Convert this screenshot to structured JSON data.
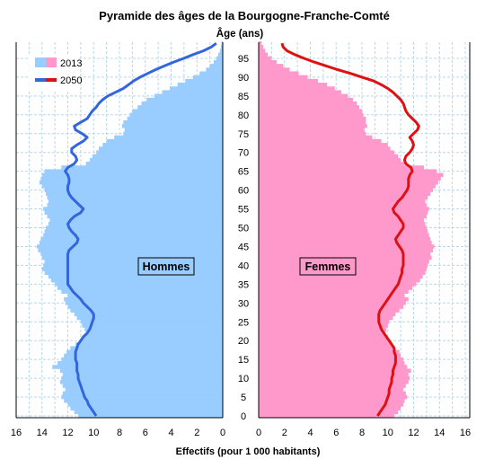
{
  "chart_data": {
    "type": "population_pyramid",
    "title": "Pyramide des âges de la Bourgogne-Franche-Comté",
    "age_axis_label": "Âge (ans)",
    "xlabel": "Effectifs (pour 1 000 habitants)",
    "x_ticks_left": [
      "16",
      "14",
      "12",
      "10",
      "8",
      "6",
      "4",
      "2",
      "0"
    ],
    "x_ticks_right": [
      "0",
      "2",
      "4",
      "6",
      "8",
      "10",
      "12",
      "14",
      "16"
    ],
    "age_ticks": [
      "0",
      "5",
      "10",
      "15",
      "20",
      "25",
      "30",
      "35",
      "40",
      "45",
      "50",
      "55",
      "60",
      "65",
      "70",
      "75",
      "80",
      "85",
      "90",
      "95"
    ],
    "xlim": [
      0,
      16
    ],
    "age_range": [
      0,
      99
    ],
    "grid": true,
    "legend_position": "top-left",
    "sides": {
      "left": "Hommes",
      "right": "Femmes"
    },
    "series": [
      {
        "name": "2013",
        "style": "bars",
        "colors": {
          "Hommes": "#99ccff",
          "Femmes": "#ff99cc"
        }
      },
      {
        "name": "2050",
        "style": "line",
        "colors": {
          "Hommes": "#3366dd",
          "Femmes": "#dd1111"
        }
      }
    ],
    "ages": [
      0,
      1,
      2,
      3,
      4,
      5,
      6,
      7,
      8,
      9,
      10,
      11,
      12,
      13,
      14,
      15,
      16,
      17,
      18,
      19,
      20,
      21,
      22,
      23,
      24,
      25,
      26,
      27,
      28,
      29,
      30,
      31,
      32,
      33,
      34,
      35,
      36,
      37,
      38,
      39,
      40,
      41,
      42,
      43,
      44,
      45,
      46,
      47,
      48,
      49,
      50,
      51,
      52,
      53,
      54,
      55,
      56,
      57,
      58,
      59,
      60,
      61,
      62,
      63,
      64,
      65,
      66,
      67,
      68,
      69,
      70,
      71,
      72,
      73,
      74,
      75,
      76,
      77,
      78,
      79,
      80,
      81,
      82,
      83,
      84,
      85,
      86,
      87,
      88,
      89,
      90,
      91,
      92,
      93,
      94,
      95,
      96,
      97,
      98,
      99
    ],
    "bars_2013": {
      "Hommes": [
        11.2,
        11.5,
        11.8,
        12.0,
        12.3,
        12.5,
        12.4,
        12.2,
        12.4,
        12.6,
        12.5,
        12.4,
        12.6,
        13.2,
        12.8,
        12.5,
        12.3,
        12.1,
        11.8,
        11.4,
        11.0,
        10.8,
        10.6,
        10.7,
        10.9,
        11.0,
        11.3,
        11.5,
        11.8,
        12.0,
        12.2,
        12.3,
        12.0,
        12.5,
        12.8,
        13.0,
        13.3,
        13.5,
        13.8,
        14.0,
        13.9,
        13.8,
        14.0,
        14.1,
        14.3,
        14.4,
        14.2,
        14.1,
        13.9,
        13.8,
        13.7,
        13.5,
        13.4,
        13.6,
        13.8,
        13.9,
        13.6,
        13.5,
        13.6,
        13.7,
        13.8,
        14.0,
        14.2,
        14.1,
        14.0,
        13.8,
        12.5,
        10.6,
        10.3,
        10.1,
        9.8,
        9.6,
        9.3,
        9.0,
        8.4,
        7.7,
        7.6,
        7.8,
        7.7,
        7.4,
        7.2,
        7.0,
        6.6,
        6.3,
        5.9,
        5.3,
        4.7,
        4.1,
        3.5,
        2.9,
        2.3,
        1.8,
        1.3,
        1.0,
        0.7,
        0.5,
        0.35,
        0.22,
        0.14,
        0.1
      ],
      "Femmes": [
        10.5,
        10.8,
        11.0,
        11.2,
        11.3,
        11.5,
        11.4,
        11.2,
        11.4,
        11.6,
        11.7,
        11.6,
        11.8,
        11.5,
        11.3,
        11.2,
        11.0,
        10.9,
        10.5,
        10.3,
        10.1,
        9.9,
        9.8,
        9.9,
        10.0,
        10.1,
        10.4,
        10.6,
        10.9,
        11.2,
        11.4,
        11.6,
        11.3,
        11.6,
        11.9,
        12.2,
        12.5,
        12.7,
        12.9,
        13.0,
        13.1,
        13.2,
        13.4,
        13.3,
        13.5,
        13.6,
        13.4,
        13.3,
        13.2,
        13.1,
        13.0,
        12.9,
        12.8,
        13.0,
        13.1,
        13.2,
        13.0,
        12.9,
        13.1,
        13.3,
        13.5,
        13.7,
        13.9,
        14.1,
        14.3,
        13.8,
        12.8,
        11.3,
        11.0,
        10.8,
        10.5,
        10.2,
        10.0,
        9.5,
        8.8,
        8.3,
        8.2,
        8.4,
        8.3,
        8.3,
        8.1,
        8.0,
        7.8,
        7.6,
        7.3,
        6.9,
        6.4,
        5.9,
        5.3,
        4.6,
        3.8,
        3.1,
        2.4,
        1.9,
        1.4,
        1.0,
        0.7,
        0.5,
        0.35,
        0.22
      ]
    },
    "line_2050": {
      "Hommes": [
        9.8,
        10.0,
        10.2,
        10.4,
        10.5,
        10.7,
        10.8,
        10.9,
        11.0,
        11.1,
        11.2,
        11.2,
        11.3,
        11.3,
        11.3,
        11.4,
        11.4,
        11.4,
        11.3,
        11.2,
        11.0,
        10.8,
        10.5,
        10.3,
        10.2,
        10.1,
        10.0,
        10.0,
        10.2,
        10.5,
        10.8,
        11.0,
        11.3,
        11.6,
        11.8,
        12.0,
        12.0,
        12.0,
        12.0,
        12.0,
        12.0,
        12.0,
        12.0,
        12.0,
        11.9,
        11.6,
        11.3,
        11.2,
        11.4,
        11.7,
        11.9,
        12.0,
        11.8,
        11.5,
        11.0,
        10.8,
        11.1,
        11.4,
        11.7,
        11.9,
        12.0,
        12.0,
        11.9,
        11.9,
        12.0,
        12.2,
        12.0,
        11.5,
        11.3,
        11.4,
        11.7,
        11.7,
        11.3,
        10.8,
        10.5,
        10.9,
        11.4,
        11.5,
        11.0,
        10.5,
        10.3,
        10.1,
        9.8,
        9.6,
        9.3,
        8.9,
        8.3,
        7.7,
        7.3,
        6.9,
        6.4,
        5.8,
        5.2,
        4.5,
        3.8,
        3.0,
        2.3,
        1.5,
        0.9,
        0.5
      ],
      "Femmes": [
        9.2,
        9.4,
        9.6,
        9.8,
        9.9,
        10.0,
        10.1,
        10.1,
        10.2,
        10.3,
        10.3,
        10.4,
        10.4,
        10.5,
        10.6,
        10.6,
        10.6,
        10.5,
        10.5,
        10.3,
        10.1,
        9.9,
        9.7,
        9.5,
        9.4,
        9.3,
        9.3,
        9.3,
        9.4,
        9.6,
        9.8,
        10.0,
        10.2,
        10.4,
        10.6,
        10.8,
        10.9,
        11.0,
        11.1,
        11.1,
        11.2,
        11.2,
        11.2,
        11.2,
        11.1,
        10.9,
        10.7,
        10.6,
        10.8,
        11.0,
        11.2,
        11.2,
        11.0,
        10.8,
        10.5,
        10.4,
        10.6,
        10.8,
        11.1,
        11.3,
        11.5,
        11.6,
        11.6,
        11.6,
        11.7,
        11.9,
        11.8,
        11.4,
        11.3,
        11.4,
        11.7,
        11.9,
        12.0,
        11.9,
        11.7,
        12.0,
        12.3,
        12.4,
        12.2,
        11.9,
        11.6,
        11.4,
        11.3,
        11.2,
        11.0,
        10.7,
        10.4,
        10.0,
        9.5,
        8.9,
        8.0,
        7.1,
        6.1,
        5.2,
        4.3,
        3.5,
        2.8,
        2.2,
        1.9,
        1.8
      ]
    }
  }
}
